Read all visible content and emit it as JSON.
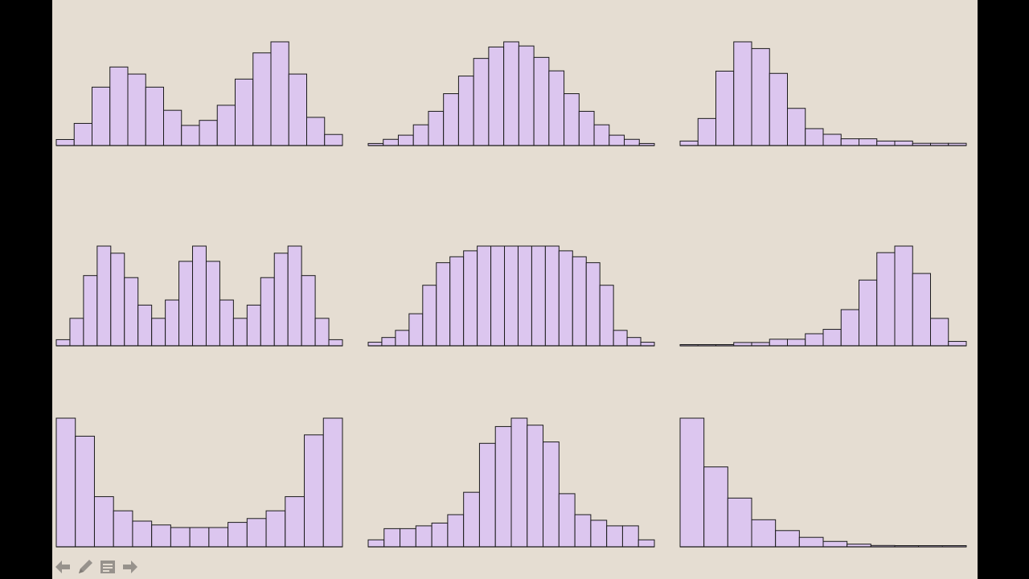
{
  "colors": {
    "background": "#e5ddd2",
    "bar_fill": "#dcc6ef",
    "bar_stroke": "#1a1a1a",
    "side_bars": "#000000",
    "toolbar_icon": "#8a8680"
  },
  "toolbar": {
    "items": [
      {
        "icon": "arrow-left-icon"
      },
      {
        "icon": "pencil-icon"
      },
      {
        "icon": "slide-menu-icon"
      },
      {
        "icon": "arrow-right-icon"
      }
    ]
  },
  "chart_data": [
    {
      "type": "bar",
      "shape": "bimodal",
      "values": [
        6,
        22,
        58,
        78,
        71,
        58,
        35,
        20,
        25,
        40,
        66,
        92,
        103,
        71,
        28,
        11
      ]
    },
    {
      "type": "bar",
      "shape": "bell",
      "values": [
        2,
        6,
        10,
        20,
        33,
        50,
        67,
        84,
        95,
        100,
        96,
        85,
        72,
        50,
        33,
        20,
        10,
        6,
        2
      ]
    },
    {
      "type": "bar",
      "shape": "right-skewed",
      "values": [
        4,
        24,
        66,
        92,
        86,
        64,
        33,
        15,
        10,
        6,
        6,
        4,
        4,
        2,
        2,
        2
      ]
    },
    {
      "type": "bar",
      "shape": "trimodal",
      "values": [
        6,
        27,
        69,
        98,
        91,
        67,
        40,
        27,
        45,
        83,
        98,
        83,
        45,
        27,
        40,
        67,
        91,
        98,
        69,
        27,
        6
      ]
    },
    {
      "type": "bar",
      "shape": "plateau",
      "values": [
        3,
        7,
        13,
        27,
        51,
        70,
        75,
        80,
        84,
        84,
        84,
        84,
        84,
        84,
        80,
        75,
        70,
        51,
        13,
        7,
        3
      ]
    },
    {
      "type": "bar",
      "shape": "left-skewed",
      "values": [
        1,
        1,
        1,
        3,
        3,
        6,
        6,
        11,
        15,
        33,
        60,
        85,
        91,
        66,
        25,
        4
      ]
    },
    {
      "type": "bar",
      "shape": "u-shaped",
      "values": [
        100,
        86,
        39,
        28,
        20,
        17,
        15,
        15,
        15,
        19,
        22,
        28,
        39,
        87,
        100
      ]
    },
    {
      "type": "bar",
      "shape": "peaked",
      "values": [
        5,
        13,
        13,
        15,
        17,
        23,
        39,
        74,
        86,
        92,
        87,
        75,
        38,
        23,
        19,
        15,
        15,
        5
      ]
    },
    {
      "type": "bar",
      "shape": "exponential-decay",
      "values": [
        95,
        59,
        36,
        20,
        12,
        7,
        4,
        2,
        1,
        0,
        0,
        0
      ]
    }
  ]
}
